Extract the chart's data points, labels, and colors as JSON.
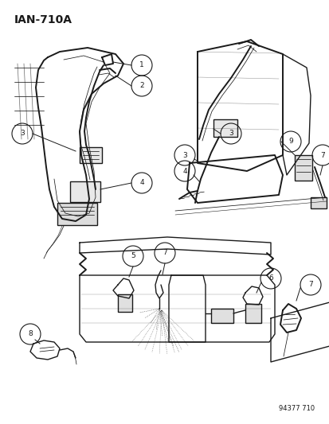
{
  "title": "IAN-710A",
  "footer": "94377 710",
  "bg_color": "#ffffff",
  "fg_color": "#1a1a1a",
  "figsize": [
    4.14,
    5.33
  ],
  "dpi": 100,
  "title_fontsize": 10,
  "footer_fontsize": 6,
  "callout_r": 0.018,
  "callout_fontsize": 6.5,
  "lw_main": 1.0,
  "lw_thin": 0.55,
  "lw_thick": 1.4
}
